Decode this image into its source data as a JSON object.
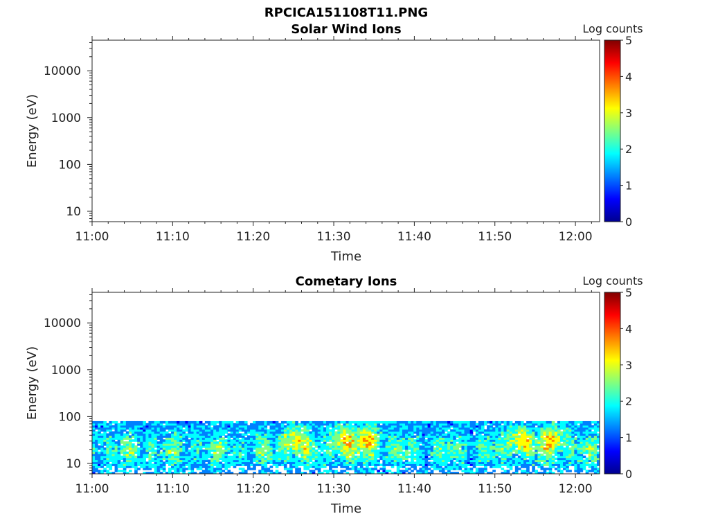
{
  "figure_title": "RPCICA151108T11.PNG",
  "colors": {
    "colormap": [
      "#00008f",
      "#0000ff",
      "#0080ff",
      "#00ffff",
      "#80ff80",
      "#ffff00",
      "#ff8000",
      "#ff0000",
      "#800000"
    ]
  },
  "chart_data": [
    {
      "type": "heatmap",
      "title": "Solar Wind Ions",
      "xlabel": "Time",
      "ylabel": "Energy (eV)",
      "x_ticks": [
        "11:00",
        "11:10",
        "11:20",
        "11:30",
        "11:40",
        "11:50",
        "12:00"
      ],
      "y_ticks": [
        "10",
        "100",
        "1000",
        "10000"
      ],
      "y_scale": "log",
      "ylim": [
        6,
        45000
      ],
      "xlim": [
        "11:00",
        "12:03"
      ],
      "colorbar": {
        "label": "Log counts",
        "ticks": [
          "0",
          "1",
          "2",
          "3",
          "4",
          "5"
        ],
        "range": [
          0,
          5
        ]
      },
      "data": []
    },
    {
      "type": "heatmap",
      "title": "Cometary Ions",
      "xlabel": "Time",
      "ylabel": "Energy (eV)",
      "x_ticks": [
        "11:00",
        "11:10",
        "11:20",
        "11:30",
        "11:40",
        "11:50",
        "12:00"
      ],
      "y_ticks": [
        "10",
        "100",
        "1000",
        "10000"
      ],
      "y_scale": "log",
      "ylim": [
        6,
        45000
      ],
      "xlim": [
        "11:00",
        "12:03"
      ],
      "colorbar": {
        "label": "Log counts",
        "ticks": [
          "0",
          "1",
          "2",
          "3",
          "4",
          "5"
        ],
        "range": [
          0,
          5
        ]
      },
      "energy_range_with_counts_eV": [
        6,
        80
      ],
      "peak_times_log_counts_approx_4": [
        "11:25",
        "11:31",
        "11:34",
        "11:53",
        "11:57"
      ]
    }
  ]
}
